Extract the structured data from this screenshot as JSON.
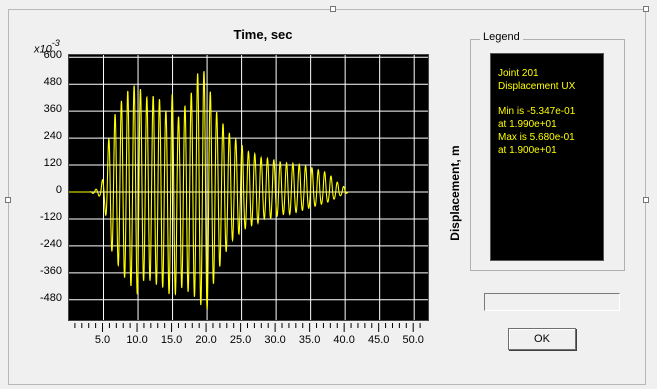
{
  "plot": {
    "title": "Time, sec",
    "y_axis_multiplier": "x10",
    "y_axis_exponent": "-3",
    "y_axis_label": "Displacement, m"
  },
  "legend": {
    "title": "Legend",
    "lines": [
      "Joint 201",
      "Displacement  UX",
      "",
      "Min is -5.347e-01",
      "at 1.990e+01",
      "Max is 5.680e-01",
      "at 1.900e+01"
    ]
  },
  "buttons": {
    "ok_label": "OK"
  },
  "chart_data": {
    "type": "line",
    "title": "Time, sec",
    "xlabel": "",
    "ylabel": "Displacement, m",
    "xlim": [
      0,
      52
    ],
    "ylim": [
      -570,
      610
    ],
    "y_ticks": [
      "600",
      "480",
      "360",
      "240",
      "120",
      "0",
      "-120",
      "-240",
      "-360",
      "-480"
    ],
    "x_ticks": [
      "5.0",
      "10.0",
      "15.0",
      "20.0",
      "25.0",
      "30.0",
      "35.0",
      "40.0",
      "45.0",
      "50.0"
    ],
    "grid": true,
    "colors": {
      "background": "#000000",
      "grid": "#ffffff",
      "series": "#ffff00"
    },
    "series": [
      {
        "x": [
          0,
          1.5,
          3.0,
          4.5,
          5.2,
          6.0,
          7.0,
          8.0,
          9.0,
          10.0,
          11.0,
          12.0,
          13.0,
          14.0,
          15.0,
          16.0,
          17.0,
          18.0,
          19.0,
          19.9,
          21.0,
          22.0,
          23.0,
          24.0,
          25.0,
          26.0,
          27.0,
          28.0,
          29.0,
          30.0,
          31.0,
          32.0,
          33.0,
          34.0,
          35.0,
          36.0,
          37.0,
          38.0,
          39.0,
          40.0,
          40.5
        ],
        "y": [
          0,
          0,
          0,
          20,
          90,
          300,
          370,
          430,
          470,
          480,
          420,
          430,
          420,
          360,
          440,
          320,
          400,
          460,
          568,
          520,
          380,
          320,
          270,
          240,
          210,
          180,
          170,
          150,
          150,
          140,
          130,
          130,
          125,
          120,
          110,
          100,
          90,
          70,
          40,
          20,
          0
        ],
        "y_min": [
          0,
          0,
          0,
          -20,
          -80,
          -250,
          -320,
          -380,
          -420,
          -460,
          -380,
          -400,
          -420,
          -430,
          -480,
          -420,
          -440,
          -460,
          -500,
          -534,
          -400,
          -320,
          -250,
          -200,
          -180,
          -150,
          -150,
          -120,
          -120,
          -110,
          -100,
          -100,
          -90,
          -80,
          -70,
          -60,
          -50,
          -40,
          -20,
          -10,
          0
        ]
      }
    ]
  }
}
